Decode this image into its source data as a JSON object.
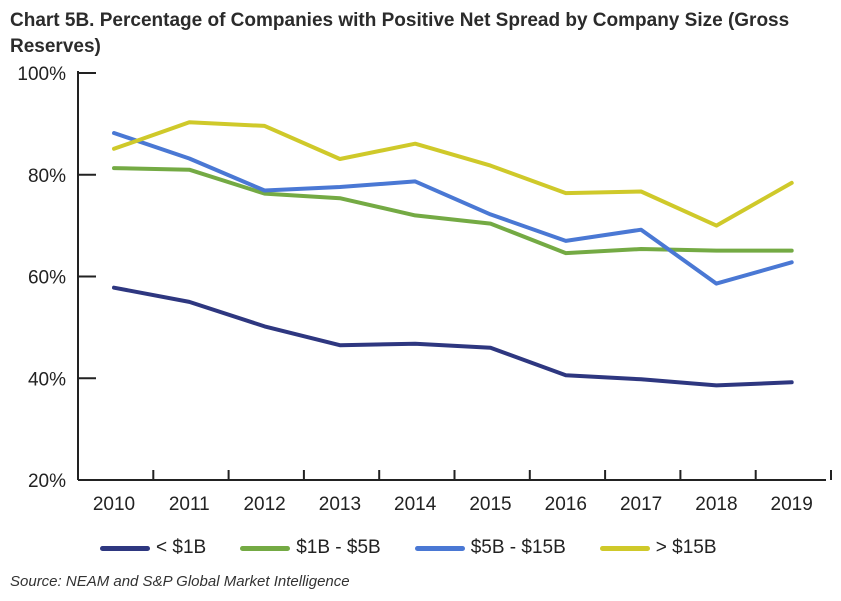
{
  "title": "Chart 5B. Percentage of Companies with Positive Net Spread by Company Size (Gross Reserves)",
  "source": "Source: NEAM and S&P Global Market Intelligence",
  "chart_data": {
    "type": "line",
    "title": "Chart 5B. Percentage of Companies with Positive Net Spread by Company Size (Gross Reserves)",
    "xlabel": "",
    "ylabel": "",
    "ylim": [
      20,
      100
    ],
    "yticks": [
      "20%",
      "40%",
      "60%",
      "80%",
      "100%"
    ],
    "ytick_values": [
      20,
      40,
      60,
      80,
      100
    ],
    "categories": [
      "2010",
      "2011",
      "2012",
      "2013",
      "2014",
      "2015",
      "2016",
      "2017",
      "2018",
      "2019"
    ],
    "legend_position": "bottom",
    "grid": false,
    "series": [
      {
        "name": "< $1B",
        "color": "#2e3780",
        "values": [
          57.8,
          55.0,
          50.2,
          46.5,
          46.8,
          46.0,
          40.6,
          39.8,
          38.6,
          39.2
        ]
      },
      {
        "name": "$1B - $5B",
        "color": "#74aa44",
        "values": [
          81.3,
          81.0,
          76.3,
          75.4,
          72.0,
          70.4,
          64.6,
          65.4,
          65.1,
          65.1
        ]
      },
      {
        "name": "$5B - $15B",
        "color": "#4a78d4",
        "values": [
          88.2,
          83.2,
          76.9,
          77.6,
          78.7,
          72.2,
          67.0,
          69.2,
          58.6,
          62.8
        ]
      },
      {
        "name": "> $15B",
        "color": "#cfc92a",
        "values": [
          85.1,
          90.3,
          89.6,
          83.1,
          86.1,
          81.8,
          76.4,
          76.7,
          70.0,
          78.4
        ]
      }
    ]
  }
}
